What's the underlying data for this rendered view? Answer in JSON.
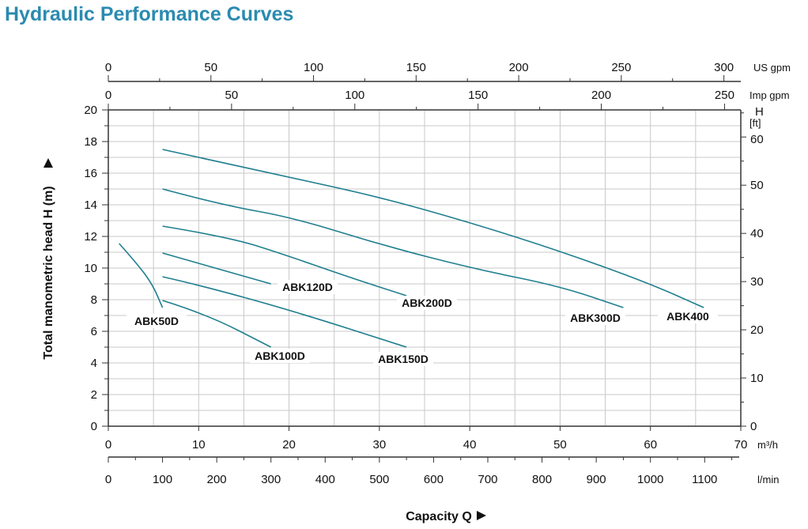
{
  "title": "Hydraulic Performance Curves",
  "chart_data": {
    "type": "line",
    "title": "Hydraulic Performance Curves",
    "xlabel": "Capacity Q",
    "ylabel": "Total manometric head H (m)",
    "xlim": [
      0,
      70
    ],
    "ylim": [
      0,
      20
    ],
    "x_unit": "m³/h",
    "grid": true,
    "line_color": "#1f7f8f",
    "x_ticks": [
      0,
      10,
      20,
      30,
      40,
      50,
      60,
      70
    ],
    "y_ticks": [
      0,
      2,
      4,
      6,
      8,
      10,
      12,
      14,
      16,
      18,
      20
    ],
    "secondary_axes": {
      "top_us_gpm": {
        "unit": "US gpm",
        "ticks": [
          0,
          50,
          100,
          150,
          200,
          250,
          300
        ]
      },
      "top_imp_gpm": {
        "unit": "Imp gpm",
        "ticks": [
          0,
          50,
          100,
          150,
          200,
          250
        ]
      },
      "bottom_lmin": {
        "unit": "l/min",
        "ticks": [
          0,
          100,
          200,
          300,
          400,
          500,
          600,
          700,
          800,
          900,
          1000,
          1100
        ]
      },
      "right_ft": {
        "unit_top": "H",
        "unit_bottom": "[ft]",
        "ticks": [
          0,
          10,
          20,
          30,
          40,
          50,
          60
        ]
      }
    },
    "series": [
      {
        "name": "ABK400",
        "x": [
          6,
          20.4,
          30.3,
          40.5,
          50.1,
          59.8,
          65.9
        ],
        "y": [
          17.5,
          15.7,
          14.45,
          12.8,
          11.05,
          9.05,
          7.5
        ]
      },
      {
        "name": "ABK300D",
        "x": [
          6,
          12.5,
          20.4,
          30.3,
          40.5,
          50,
          57
        ],
        "y": [
          15,
          14,
          13.2,
          11.45,
          9.95,
          8.85,
          7.5
        ]
      },
      {
        "name": "ABK200D",
        "x": [
          6,
          13.4,
          19.5,
          26.5,
          33
        ],
        "y": [
          12.65,
          11.95,
          10.85,
          9.45,
          8.25
        ]
      },
      {
        "name": "ABK120D",
        "x": [
          6,
          18
        ],
        "y": [
          10.95,
          9
        ]
      },
      {
        "name": "ABK150D",
        "x": [
          6,
          9.9,
          20.4,
          33
        ],
        "y": [
          9.45,
          8.95,
          7.3,
          5
        ]
      },
      {
        "name": "ABK100D",
        "x": [
          6,
          10.8,
          18
        ],
        "y": [
          7.95,
          7.1,
          5
        ]
      },
      {
        "name": "ABK50D",
        "x": [
          1.2,
          3.3,
          4.9,
          6
        ],
        "y": [
          11.55,
          10.2,
          8.95,
          7.5
        ]
      }
    ]
  }
}
